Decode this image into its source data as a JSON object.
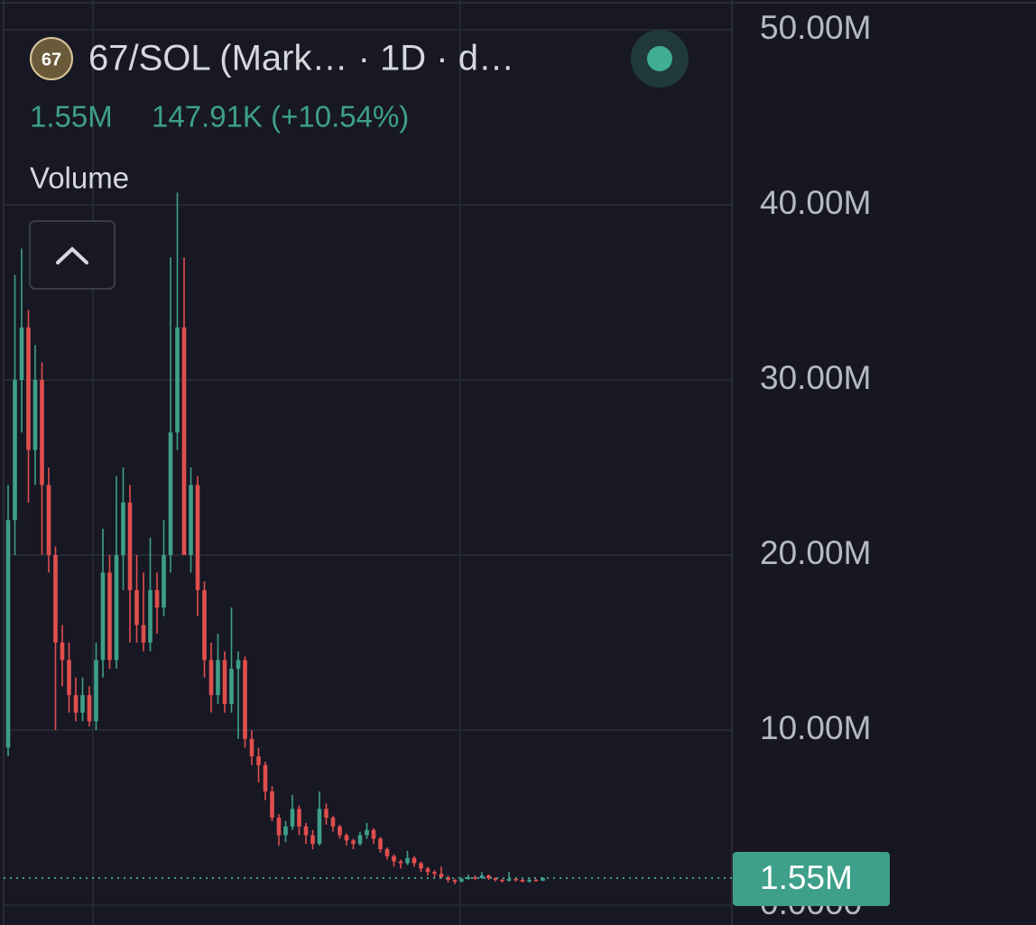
{
  "chart_data": {
    "type": "candlestick",
    "logo": "67",
    "title": "67/SOL (Mark… · 1D · d…",
    "legend_value": "1.55M",
    "legend_change": "147.91K (+10.54%)",
    "indicator": "Volume",
    "up_color": "#3e9f8a",
    "down_color": "#e04e4e",
    "ylim": [
      -1130000,
      51700000
    ],
    "yticks": [
      {
        "value": 0,
        "label": "0.0000"
      },
      {
        "value": 10000000,
        "label": "10.00M"
      },
      {
        "value": 20000000,
        "label": "20.00M"
      },
      {
        "value": 30000000,
        "label": "30.00M"
      },
      {
        "value": 40000000,
        "label": "40.00M"
      },
      {
        "value": 50000000,
        "label": "50.00M"
      }
    ],
    "grid": true,
    "last_price": {
      "value": 1550000,
      "label": "1.55M"
    },
    "open": [
      9000000,
      22000000,
      30000000,
      33000000,
      26000000,
      30000000,
      24000000,
      20000000,
      15000000,
      14000000,
      12000000,
      11000000,
      12000000,
      10500000,
      14000000,
      19000000,
      14000000,
      20000000,
      23000000,
      18000000,
      16000000,
      15000000,
      18000000,
      17000000,
      20000000,
      27000000,
      33000000,
      20000000,
      24000000,
      18000000,
      14000000,
      12000000,
      14000000,
      11500000,
      13500000,
      14000000,
      9500000,
      8500000,
      8000000,
      6500000,
      5000000,
      4000000,
      4500000,
      5500000,
      4500000,
      4000000,
      3500000,
      5500000,
      5000000,
      4500000,
      4000000,
      3700000,
      3500000,
      4000000,
      4300000,
      3800000,
      3200000,
      2800000,
      2500000,
      2400000,
      2700000,
      2400000,
      2100000,
      1900000,
      1800000,
      1600000,
      1450000,
      1350000,
      1500000,
      1600000,
      1550000,
      1700000,
      1550000,
      1450000,
      1400000,
      1500000,
      1450000,
      1350000,
      1450000,
      1400000
    ],
    "high": [
      24000000,
      36000000,
      37500000,
      34000000,
      32000000,
      31000000,
      25000000,
      20500000,
      16000000,
      15000000,
      13000000,
      13000000,
      12500000,
      15000000,
      21500000,
      20000000,
      24500000,
      25000000,
      24000000,
      20000000,
      19000000,
      21000000,
      19000000,
      22000000,
      37000000,
      40700000,
      37000000,
      25000000,
      24500000,
      18500000,
      15000000,
      15500000,
      14500000,
      17000000,
      14500000,
      14200000,
      10000000,
      9000000,
      8200000,
      6800000,
      5200000,
      4800000,
      6300000,
      5700000,
      4700000,
      4300000,
      6500000,
      5800000,
      5100000,
      4600000,
      4100000,
      3800000,
      4200000,
      4700000,
      4400000,
      3900000,
      3300000,
      2900000,
      2600000,
      3100000,
      2800000,
      2500000,
      2200000,
      2000000,
      2200000,
      1700000,
      1500000,
      1600000,
      1750000,
      1700000,
      1900000,
      1750000,
      1600000,
      1500000,
      1900000,
      1550000,
      1500000,
      1550000,
      1500000,
      1600000
    ],
    "low": [
      8500000,
      20000000,
      27000000,
      23000000,
      24000000,
      20000000,
      19000000,
      10000000,
      12500000,
      11000000,
      10500000,
      10500000,
      10200000,
      10000000,
      13000000,
      13500000,
      13500000,
      18000000,
      15000000,
      15000000,
      14500000,
      14500000,
      15500000,
      16500000,
      19000000,
      26000000,
      20000000,
      19000000,
      16500000,
      13000000,
      11000000,
      11500000,
      11000000,
      11000000,
      9500000,
      9000000,
      8000000,
      7000000,
      6000000,
      4800000,
      3400000,
      3600000,
      4300000,
      4000000,
      3500000,
      3200000,
      3400000,
      4600000,
      4200000,
      3800000,
      3400000,
      3200000,
      3400000,
      3800000,
      3500000,
      3000000,
      2600000,
      2200000,
      2100000,
      2300000,
      2200000,
      1900000,
      1700000,
      1600000,
      1500000,
      1300000,
      1200000,
      1300000,
      1450000,
      1450000,
      1500000,
      1450000,
      1350000,
      1300000,
      1350000,
      1350000,
      1300000,
      1300000,
      1350000,
      1380000
    ],
    "close": [
      22000000,
      30000000,
      33000000,
      26000000,
      30000000,
      24000000,
      20000000,
      15000000,
      14000000,
      12000000,
      11000000,
      12000000,
      10500000,
      14000000,
      19000000,
      14000000,
      20000000,
      23000000,
      18000000,
      16000000,
      15000000,
      18000000,
      17000000,
      20000000,
      27000000,
      33000000,
      20000000,
      24000000,
      18000000,
      14000000,
      12000000,
      14000000,
      11500000,
      13500000,
      14000000,
      9500000,
      8500000,
      8000000,
      6500000,
      5000000,
      4000000,
      4500000,
      5500000,
      4500000,
      4000000,
      3500000,
      5500000,
      5000000,
      4500000,
      4000000,
      3700000,
      3500000,
      4000000,
      4300000,
      3800000,
      3200000,
      2800000,
      2500000,
      2400000,
      2700000,
      2400000,
      2100000,
      1900000,
      1800000,
      1600000,
      1450000,
      1350000,
      1500000,
      1600000,
      1550000,
      1700000,
      1550000,
      1450000,
      1400000,
      1500000,
      1450000,
      1350000,
      1450000,
      1400000,
      1550000
    ]
  }
}
